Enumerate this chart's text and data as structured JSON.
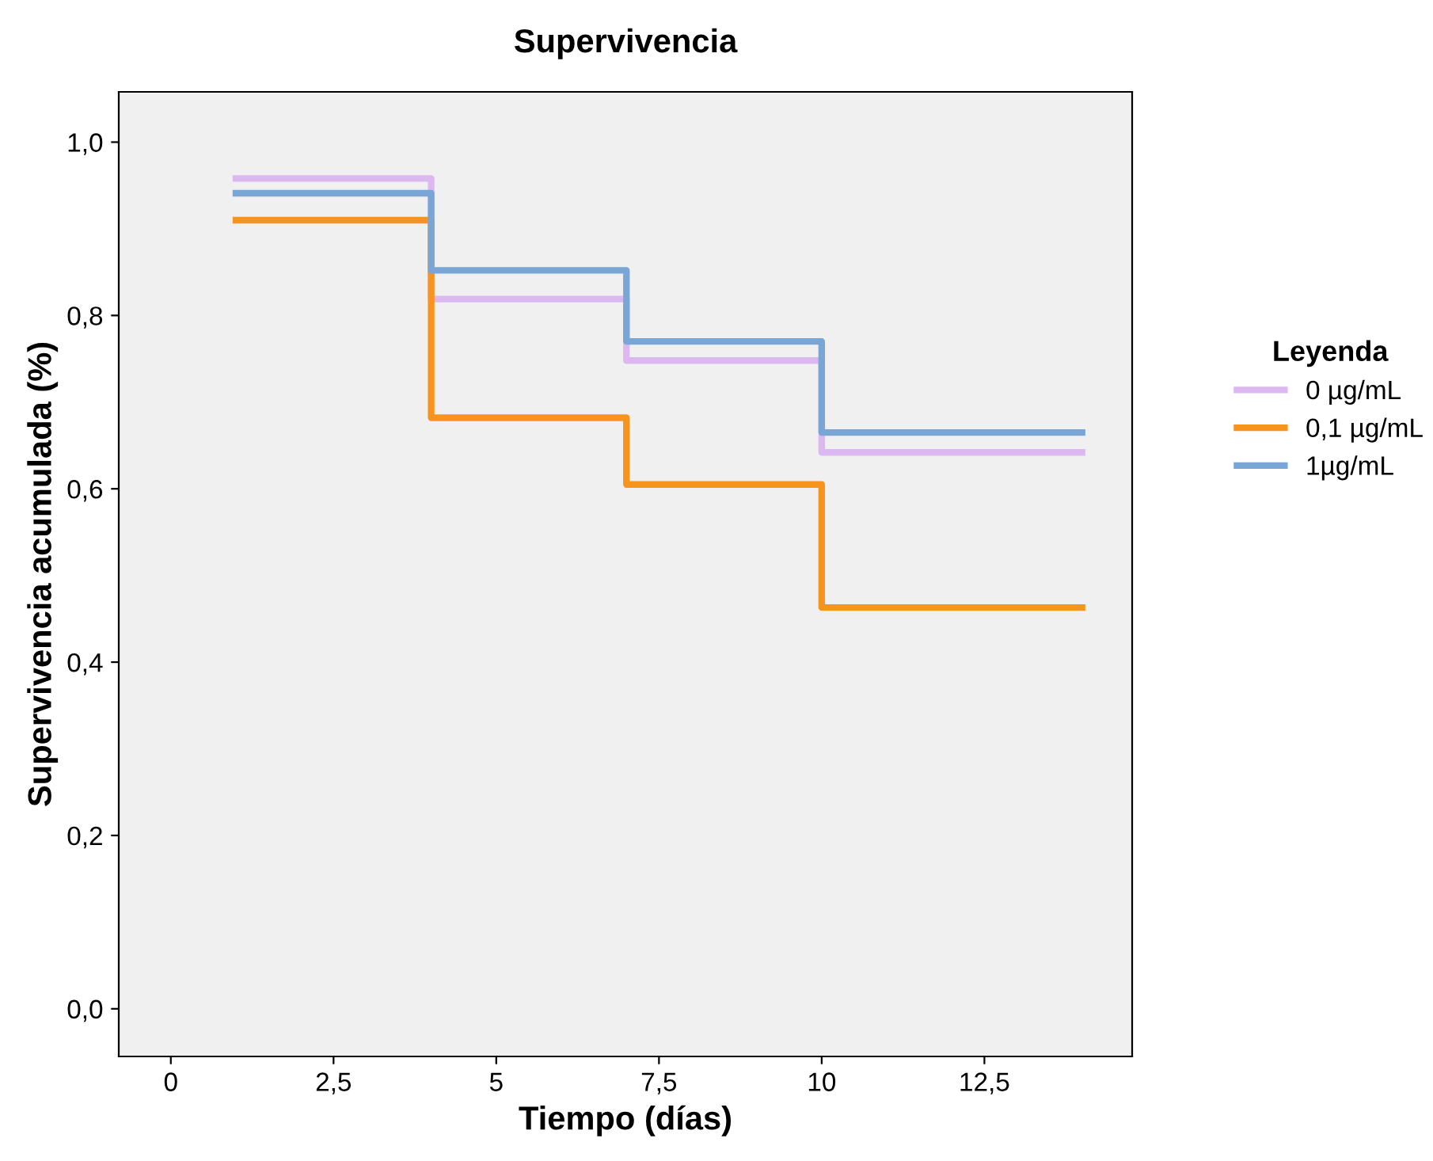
{
  "chart_data": {
    "type": "step",
    "title": "Supervivencia",
    "xlabel": "Tiempo (días)",
    "ylabel": "Supervivencia acumulada (%)",
    "legend_title": "Leyenda",
    "x": [
      1,
      4,
      7,
      10,
      14
    ],
    "series": [
      {
        "name": "0 µg/mL",
        "color": "#dcb8f0",
        "values": [
          0.958,
          0.819,
          0.748,
          0.642,
          0.642
        ]
      },
      {
        "name": "0,1 µg/mL",
        "color": "#f7941d",
        "values": [
          0.91,
          0.682,
          0.605,
          0.463,
          0.463
        ]
      },
      {
        "name": "1µg/mL",
        "color": "#7aa6d6",
        "values": [
          0.941,
          0.852,
          0.77,
          0.665,
          0.665
        ]
      }
    ],
    "xlim": [
      -0.8,
      14.77
    ],
    "ylim": [
      -0.055,
      1.058
    ],
    "xticks": [
      0,
      {
        "value": 2.5,
        "label": "2,5"
      },
      5,
      {
        "value": 7.5,
        "label": "7,5"
      },
      10,
      {
        "value": 12.5,
        "label": "12,5"
      }
    ],
    "yticks": [
      {
        "value": 0,
        "label": "0,0"
      },
      {
        "value": 0.2,
        "label": "0,2"
      },
      {
        "value": 0.4,
        "label": "0,4"
      },
      {
        "value": 0.6,
        "label": "0,6"
      },
      {
        "value": 0.8,
        "label": "0,8"
      },
      {
        "value": 1.0,
        "label": "1,0"
      }
    ],
    "grid": false,
    "legend": "right",
    "line_style": "solid"
  }
}
